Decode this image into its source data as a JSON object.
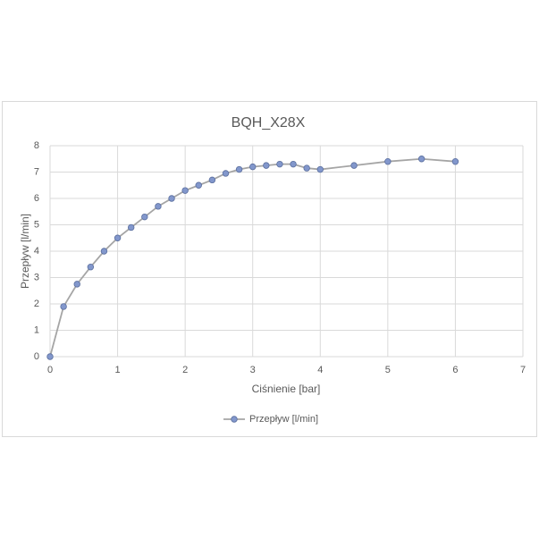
{
  "chart_data": {
    "type": "line",
    "title": "BQH_X28X",
    "x_label": "Ciśnienie [bar]",
    "y_label": "Przepływ [l/min]",
    "x": [
      0,
      0.2,
      0.4,
      0.6,
      0.8,
      1.0,
      1.2,
      1.4,
      1.6,
      1.8,
      2.0,
      2.2,
      2.4,
      2.6,
      2.8,
      3.0,
      3.2,
      3.4,
      3.6,
      3.8,
      4.0,
      4.5,
      5.0,
      5.5,
      6.0
    ],
    "series": [
      {
        "name": "Przepływ [l/min]",
        "color": "#8297cc",
        "line_color": "#a5a5a5",
        "values": [
          0,
          1.9,
          2.75,
          3.4,
          4.0,
          4.5,
          4.9,
          5.3,
          5.7,
          6.0,
          6.3,
          6.5,
          6.7,
          6.95,
          7.1,
          7.2,
          7.25,
          7.3,
          7.3,
          7.15,
          7.1,
          7.25,
          7.4,
          7.5,
          7.4
        ]
      }
    ],
    "xlim": [
      0,
      7
    ],
    "xticks": [
      0,
      1,
      2,
      3,
      4,
      5,
      6,
      7
    ],
    "ylim": [
      0,
      8
    ],
    "yticks": [
      0,
      1,
      2,
      3,
      4,
      5,
      6,
      7,
      8
    ],
    "grid": true,
    "legend": "bottom"
  }
}
